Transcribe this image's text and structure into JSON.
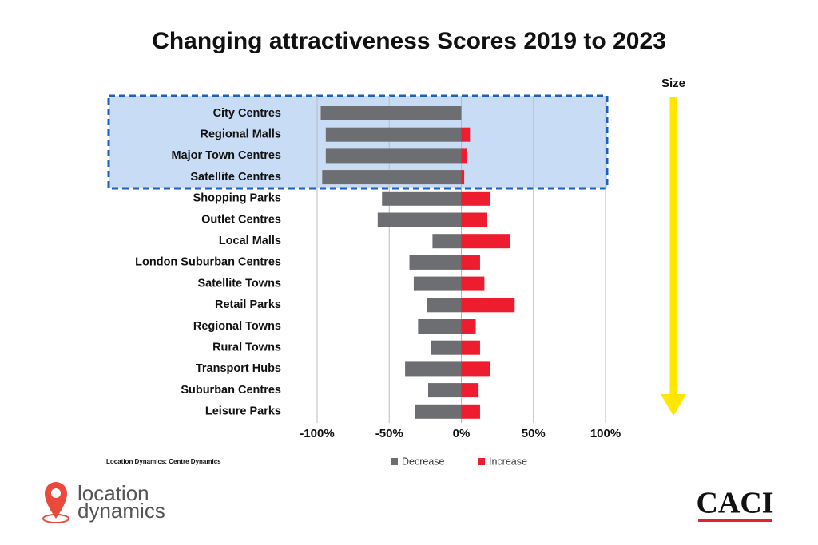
{
  "chart_data": {
    "type": "bar",
    "orientation": "horizontal",
    "title": "Changing attractiveness Scores 2019 to 2023",
    "categories": [
      "City Centres",
      "Regional Malls",
      "Major Town Centres",
      "Satellite Centres",
      "Shopping Parks",
      "Outlet Centres",
      "Local Malls",
      "London Suburban Centres",
      "Satellite Towns",
      "Retail Parks",
      "Regional Towns",
      "Rural Towns",
      "Transport Hubs",
      "Suburban Centres",
      "Leisure Parks"
    ],
    "series": [
      {
        "name": "Decrease",
        "color": "#6d6e71",
        "values": [
          -97.5,
          -94,
          -94,
          -96.5,
          -55,
          -58,
          -20,
          -36,
          -33,
          -24,
          -30,
          -21,
          -39,
          -23,
          -32
        ]
      },
      {
        "name": "Increase",
        "color": "#ed1c2e",
        "values": [
          0,
          6,
          4,
          2,
          20,
          18,
          34,
          13,
          16,
          37,
          10,
          13,
          20,
          12,
          13
        ]
      }
    ],
    "xlim": [
      -100,
      100
    ],
    "xticks": [
      {
        "value": -100,
        "label": "-100%"
      },
      {
        "value": -50,
        "label": "-50%"
      },
      {
        "value": 0,
        "label": "0%"
      },
      {
        "value": 50,
        "label": "50%"
      },
      {
        "value": 100,
        "label": "100%"
      }
    ],
    "grid": true,
    "legend": "bottom"
  },
  "size_label": "Size",
  "source": "Location Dynamics: Centre Dynamics",
  "branding": {
    "left_line1": "location",
    "left_line2": "dynamics",
    "right": "CACI"
  }
}
